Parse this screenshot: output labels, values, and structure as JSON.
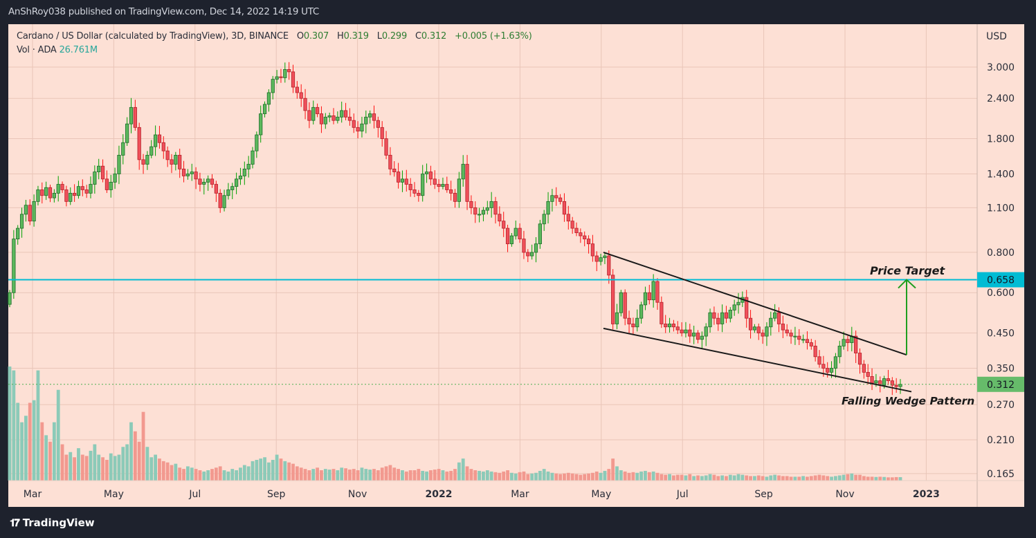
{
  "publish_line": "AnShRoy038 published on TradingView.com, Dec 14, 2022 14:19 UTC",
  "legend": {
    "symbol": "Cardano / US Dollar (calculated by TradingView), 3D, BINANCE",
    "open_label": "O",
    "open": "0.307",
    "high_label": "H",
    "high": "0.319",
    "low_label": "L",
    "low": "0.299",
    "close_label": "C",
    "close": "0.312",
    "change": "+0.005 (+1.63%)",
    "vol_label": "Vol · ADA",
    "vol_value": "26.761M"
  },
  "footer": {
    "brand": "TradingView",
    "logo_icon": "tradingview-logo-icon"
  },
  "colors": {
    "background": "#fde0d5",
    "up": "#5cb85c",
    "down": "#f0505a",
    "target_line": "#00bcd4",
    "last_price": "#66bb6a",
    "arrow": "#1e9e1e"
  },
  "chart_data": {
    "type": "candlestick",
    "title": "Cardano / US Dollar (calculated by TradingView), 3D, BINANCE",
    "interval": "3D",
    "currency": "USD",
    "y_scale": "log",
    "ylim": [
      0.155,
      3.4
    ],
    "grid": true,
    "y_ticks": [
      "3.000",
      "2.400",
      "1.800",
      "1.400",
      "1.100",
      "0.800",
      "0.600",
      "0.450",
      "0.350",
      "0.270",
      "0.210",
      "0.165"
    ],
    "x_ticks": [
      "Mar",
      "May",
      "Jul",
      "Sep",
      "Nov",
      "2022",
      "Mar",
      "May",
      "Jul",
      "Sep",
      "Nov",
      "2023"
    ],
    "closes": [
      0.6,
      0.88,
      0.95,
      1.05,
      1.12,
      1.0,
      1.15,
      1.25,
      1.2,
      1.27,
      1.18,
      1.22,
      1.3,
      1.25,
      1.15,
      1.22,
      1.2,
      1.28,
      1.25,
      1.22,
      1.3,
      1.42,
      1.48,
      1.35,
      1.25,
      1.32,
      1.4,
      1.6,
      1.75,
      2.0,
      2.25,
      1.95,
      1.55,
      1.5,
      1.6,
      1.7,
      1.85,
      1.75,
      1.65,
      1.55,
      1.5,
      1.6,
      1.45,
      1.38,
      1.4,
      1.42,
      1.35,
      1.3,
      1.32,
      1.35,
      1.3,
      1.22,
      1.1,
      1.2,
      1.25,
      1.28,
      1.35,
      1.38,
      1.45,
      1.5,
      1.65,
      1.85,
      2.15,
      2.3,
      2.5,
      2.75,
      2.8,
      2.78,
      2.95,
      2.9,
      2.6,
      2.5,
      2.4,
      2.2,
      2.05,
      2.25,
      2.15,
      2.0,
      2.1,
      2.12,
      2.05,
      2.1,
      2.2,
      2.1,
      2.05,
      1.95,
      1.9,
      2.0,
      2.1,
      2.15,
      2.05,
      1.95,
      1.8,
      1.6,
      1.45,
      1.42,
      1.32,
      1.35,
      1.3,
      1.25,
      1.22,
      1.2,
      1.4,
      1.42,
      1.35,
      1.3,
      1.28,
      1.3,
      1.25,
      1.22,
      1.15,
      1.35,
      1.5,
      1.15,
      1.1,
      1.05,
      1.05,
      1.08,
      1.1,
      1.15,
      1.05,
      1.0,
      0.95,
      0.85,
      0.9,
      0.95,
      0.88,
      0.8,
      0.78,
      0.8,
      0.85,
      0.98,
      1.05,
      1.15,
      1.2,
      1.18,
      1.15,
      1.05,
      1.0,
      0.95,
      0.92,
      0.9,
      0.88,
      0.85,
      0.78,
      0.75,
      0.77,
      0.78,
      0.68,
      0.48,
      0.52,
      0.6,
      0.5,
      0.48,
      0.47,
      0.5,
      0.55,
      0.6,
      0.57,
      0.65,
      0.56,
      0.48,
      0.47,
      0.48,
      0.47,
      0.46,
      0.45,
      0.46,
      0.44,
      0.45,
      0.43,
      0.44,
      0.47,
      0.52,
      0.5,
      0.48,
      0.52,
      0.5,
      0.53,
      0.55,
      0.56,
      0.58,
      0.5,
      0.46,
      0.47,
      0.45,
      0.44,
      0.47,
      0.5,
      0.52,
      0.48,
      0.46,
      0.45,
      0.44,
      0.44,
      0.43,
      0.43,
      0.42,
      0.41,
      0.38,
      0.36,
      0.35,
      0.34,
      0.35,
      0.38,
      0.41,
      0.43,
      0.42,
      0.44,
      0.39,
      0.36,
      0.34,
      0.33,
      0.315,
      0.32,
      0.31,
      0.325,
      0.32,
      0.31,
      0.307,
      0.312
    ],
    "volume_millions": [
      880,
      850,
      600,
      450,
      500,
      600,
      620,
      850,
      450,
      350,
      300,
      450,
      700,
      280,
      200,
      220,
      180,
      250,
      200,
      190,
      230,
      280,
      200,
      180,
      160,
      210,
      190,
      200,
      260,
      280,
      450,
      380,
      300,
      530,
      260,
      180,
      200,
      170,
      150,
      140,
      120,
      130,
      100,
      90,
      110,
      100,
      90,
      80,
      70,
      80,
      90,
      100,
      110,
      80,
      70,
      90,
      80,
      100,
      120,
      110,
      150,
      160,
      170,
      180,
      140,
      160,
      200,
      170,
      150,
      140,
      130,
      110,
      100,
      90,
      80,
      90,
      100,
      80,
      90,
      85,
      90,
      80,
      100,
      95,
      85,
      90,
      80,
      100,
      90,
      85,
      90,
      80,
      100,
      110,
      120,
      100,
      90,
      80,
      70,
      80,
      80,
      90,
      75,
      70,
      80,
      85,
      90,
      80,
      70,
      75,
      90,
      140,
      170,
      110,
      90,
      80,
      75,
      70,
      80,
      70,
      65,
      60,
      70,
      80,
      60,
      55,
      65,
      70,
      50,
      55,
      60,
      75,
      90,
      70,
      60,
      55,
      50,
      55,
      60,
      55,
      50,
      45,
      50,
      55,
      60,
      70,
      60,
      75,
      90,
      170,
      110,
      80,
      70,
      60,
      65,
      60,
      70,
      75,
      65,
      70,
      60,
      50,
      45,
      50,
      40,
      45,
      45,
      40,
      50,
      35,
      40,
      35,
      40,
      50,
      45,
      35,
      40,
      35,
      45,
      40,
      50,
      45,
      40,
      35,
      35,
      40,
      35,
      30,
      40,
      45,
      40,
      35,
      35,
      30,
      30,
      30,
      35,
      30,
      35,
      40,
      45,
      40,
      35,
      30,
      35,
      40,
      45,
      50,
      55,
      45,
      45,
      35,
      30,
      30,
      28,
      30,
      28,
      25,
      25,
      27,
      26.761
    ],
    "horizontal_line": {
      "value": 0.658,
      "label": "0.658"
    },
    "last_price": {
      "value": 0.312,
      "label": "0.312"
    },
    "annotations": {
      "price_target": "Price Target",
      "pattern": "Falling Wedge Pattern",
      "wedge_upper": [
        0.8,
        0.385
      ],
      "wedge_lower": [
        0.465,
        0.296
      ],
      "target_arrow": [
        0.385,
        0.658
      ]
    }
  }
}
